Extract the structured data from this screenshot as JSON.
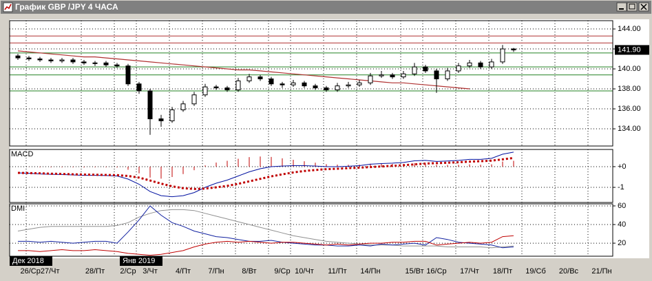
{
  "window_title": "График GBP /JPY  4 ЧАСА",
  "chart_data": [
    {
      "type": "candlestick",
      "categories": [
        null,
        null,
        "26/Ср27/Чт",
        null,
        null,
        null,
        null,
        "28/Пт",
        null,
        null,
        "2/Ср",
        null,
        "3/Чт",
        null,
        null,
        "4/Пт",
        null,
        null,
        "7/Пн",
        null,
        null,
        "8/Вт",
        null,
        null,
        "9/Ср",
        null,
        "10/Чт",
        null,
        null,
        "11/Пт",
        null,
        null,
        "14/Пн",
        null,
        null,
        null,
        "15/Вт",
        null,
        "16/Ср",
        null,
        null,
        "17/Чт",
        null,
        null,
        "18/Пт",
        null,
        null,
        "19/Сб",
        null,
        null,
        "20/Вс",
        null,
        null,
        "21/Пн"
      ],
      "month_labels": [
        "Дек 2018",
        null,
        null,
        null,
        null,
        null,
        null,
        null,
        null,
        null,
        "Янв 2019",
        null,
        null,
        null,
        null,
        null,
        null,
        null,
        null,
        null,
        null,
        null,
        null,
        null,
        null,
        null,
        null,
        null,
        null,
        null,
        null,
        null,
        null,
        null,
        null,
        null,
        null,
        null,
        null,
        null,
        null,
        null,
        null,
        null,
        null,
        null,
        null,
        null,
        null,
        null,
        null,
        null,
        null,
        null
      ],
      "open": [
        141.3,
        141.1,
        141.0,
        140.9,
        140.8,
        140.9,
        140.7,
        140.6,
        140.6,
        140.4,
        140.3,
        138.5,
        137.8,
        135.0,
        134.8,
        135.9,
        136.5,
        137.4,
        138.2,
        138.1,
        137.9,
        138.8,
        139.2,
        139.0,
        138.5,
        138.4,
        138.6,
        138.3,
        138.1,
        137.9,
        138.3,
        138.4,
        138.6,
        139.3,
        139.4,
        139.2,
        139.5,
        140.2,
        139.8,
        139.0,
        139.8,
        140.3,
        140.6,
        140.2,
        140.7,
        142.0,
        null,
        null,
        null,
        null,
        null,
        null,
        null,
        null
      ],
      "high": [
        141.5,
        141.3,
        141.2,
        141.1,
        141.1,
        141.1,
        140.9,
        140.8,
        140.8,
        140.6,
        140.5,
        138.7,
        138.0,
        135.4,
        136.2,
        136.8,
        137.7,
        138.5,
        138.4,
        138.3,
        139.1,
        139.5,
        139.4,
        139.2,
        138.7,
        138.9,
        138.8,
        138.5,
        138.3,
        138.6,
        138.7,
        138.9,
        139.6,
        139.8,
        139.6,
        139.8,
        140.6,
        140.4,
        140.0,
        140.1,
        140.6,
        140.9,
        140.8,
        141.0,
        142.4,
        142.1,
        null,
        null,
        null,
        null,
        null,
        null,
        null,
        null
      ],
      "low": [
        140.9,
        140.8,
        140.7,
        140.6,
        140.6,
        140.5,
        140.4,
        140.3,
        140.2,
        140.1,
        138.3,
        137.5,
        133.4,
        134.2,
        134.6,
        135.7,
        136.3,
        137.2,
        137.9,
        137.7,
        137.7,
        138.6,
        138.8,
        138.3,
        138.1,
        138.2,
        138.1,
        137.9,
        137.7,
        137.7,
        138.1,
        138.2,
        138.4,
        139.1,
        139.0,
        139.0,
        139.3,
        139.6,
        137.6,
        138.8,
        139.6,
        140.1,
        140.0,
        140.0,
        140.5,
        141.7,
        null,
        null,
        null,
        null,
        null,
        null,
        null,
        null
      ],
      "close": [
        141.1,
        141.0,
        140.9,
        140.8,
        140.9,
        140.7,
        140.6,
        140.6,
        140.4,
        140.3,
        138.5,
        137.8,
        135.0,
        134.8,
        135.9,
        136.5,
        137.4,
        138.2,
        138.1,
        137.9,
        138.8,
        139.2,
        139.0,
        138.5,
        138.4,
        138.6,
        138.3,
        138.1,
        137.9,
        138.3,
        138.4,
        138.6,
        139.3,
        139.4,
        139.2,
        139.5,
        140.2,
        139.8,
        139.0,
        139.8,
        140.3,
        140.6,
        140.2,
        140.7,
        142.0,
        141.9,
        null,
        null,
        null,
        null,
        null,
        null,
        null,
        null
      ],
      "up_color": "#ffffff",
      "down_color": "#000000",
      "ylim": [
        132.28,
        144.83
      ],
      "yticks": [
        {
          "value": 134,
          "label": "134.00"
        },
        {
          "value": 136,
          "label": "136.00"
        },
        {
          "value": 138,
          "label": "138.00"
        },
        {
          "value": 140,
          "label": "140.00"
        },
        {
          "value": 142,
          "label": "142.00"
        },
        {
          "value": 144,
          "label": "144.00"
        }
      ],
      "grid": true,
      "last_price": {
        "value": 141.9,
        "label": "141.90"
      },
      "levels": [
        {
          "value": 143.3,
          "color": "#b03030"
        },
        {
          "value": 142.6,
          "color": "#b03030"
        },
        {
          "value": 141.6,
          "color": "#208020"
        },
        {
          "value": 140.2,
          "color": "#208020"
        },
        {
          "value": 139.4,
          "color": "#208020"
        },
        {
          "value": 137.8,
          "color": "#208020"
        }
      ],
      "trendline": {
        "color": "#b03030",
        "values": [
          141.8,
          141.7,
          141.6,
          141.5,
          141.4,
          141.3,
          141.2,
          141.2,
          141.1,
          141.0,
          140.9,
          140.8,
          140.7,
          140.6,
          140.5,
          140.4,
          140.3,
          140.2,
          140.1,
          140.0,
          139.9,
          139.9,
          139.8,
          139.7,
          139.6,
          139.5,
          139.4,
          139.3,
          139.2,
          139.1,
          139.0,
          138.9,
          138.8,
          138.7,
          138.6,
          138.6,
          138.5,
          138.4,
          138.3,
          138.2,
          138.1,
          138.0,
          null,
          null,
          null,
          null,
          null,
          null,
          null,
          null,
          null,
          null,
          null,
          null
        ]
      }
    },
    {
      "type": "macd",
      "title": "MACD",
      "ylim": [
        -1.73,
        0.83
      ],
      "yticks": [
        -1,
        {
          "value": 0,
          "label": "+0"
        }
      ],
      "grid": true,
      "series": [
        {
          "style": "bar",
          "color": "#c00000",
          "values": [
            0,
            -0.01,
            -0.03,
            -0.03,
            -0.03,
            -0.03,
            -0.04,
            -0.03,
            -0.03,
            -0.04,
            -0.15,
            -0.32,
            -0.53,
            -0.58,
            -0.5,
            -0.36,
            -0.17,
            0.06,
            0.2,
            0.28,
            0.38,
            0.46,
            0.49,
            0.47,
            0.4,
            0.33,
            0.26,
            0.19,
            0.12,
            0.1,
            0.09,
            0.1,
            0.14,
            0.14,
            0.13,
            0.13,
            0.17,
            0.15,
            0.08,
            0.08,
            0.09,
            0.11,
            0.09,
            0.11,
            0.25,
            0.28,
            null,
            null,
            null,
            null,
            null,
            null,
            null,
            null
          ]
        },
        {
          "style": "line",
          "color": "#0010a0",
          "values": [
            -0.3,
            -0.32,
            -0.35,
            -0.37,
            -0.38,
            -0.4,
            -0.42,
            -0.42,
            -0.43,
            -0.45,
            -0.6,
            -0.85,
            -1.2,
            -1.4,
            -1.45,
            -1.4,
            -1.25,
            -1.0,
            -0.8,
            -0.65,
            -0.45,
            -0.25,
            -0.1,
            0.0,
            0.03,
            0.05,
            0.05,
            0.03,
            0.0,
            0.0,
            0.02,
            0.05,
            0.12,
            0.15,
            0.17,
            0.2,
            0.28,
            0.3,
            0.25,
            0.27,
            0.3,
            0.35,
            0.35,
            0.4,
            0.6,
            0.7,
            null,
            null,
            null,
            null,
            null,
            null,
            null,
            null
          ]
        },
        {
          "style": "dotted",
          "color": "#c00000",
          "values": [
            -0.3,
            -0.31,
            -0.32,
            -0.34,
            -0.35,
            -0.37,
            -0.38,
            -0.39,
            -0.4,
            -0.41,
            -0.45,
            -0.53,
            -0.67,
            -0.82,
            -0.95,
            -1.04,
            -1.08,
            -1.06,
            -1.0,
            -0.93,
            -0.83,
            -0.71,
            -0.59,
            -0.47,
            -0.37,
            -0.28,
            -0.21,
            -0.16,
            -0.12,
            -0.1,
            -0.07,
            -0.05,
            -0.02,
            0.01,
            0.04,
            0.07,
            0.11,
            0.15,
            0.17,
            0.19,
            0.21,
            0.24,
            0.26,
            0.29,
            0.35,
            0.42,
            null,
            null,
            null,
            null,
            null,
            null,
            null,
            null
          ]
        }
      ]
    },
    {
      "type": "dmi",
      "title": "DMI",
      "ylim": [
        6,
        62.2
      ],
      "yticks": [
        20,
        40,
        60
      ],
      "grid": true,
      "series": [
        {
          "style": "line",
          "color": "#909090",
          "values": [
            33,
            35,
            37,
            38,
            38,
            38,
            38,
            38,
            38,
            39,
            42,
            48,
            52,
            55,
            56,
            56,
            55,
            52,
            49,
            46,
            43,
            40,
            37,
            34,
            31,
            28,
            26,
            24,
            22,
            21,
            20,
            19,
            18,
            18,
            18,
            17,
            17,
            17,
            17,
            16,
            16,
            16,
            16,
            15,
            16,
            17,
            null,
            null,
            null,
            null,
            null,
            null,
            null,
            null
          ]
        },
        {
          "style": "line",
          "color": "#1020a0",
          "values": [
            22,
            22,
            21,
            22,
            21,
            20,
            21,
            22,
            22,
            20,
            32,
            45,
            60,
            50,
            42,
            38,
            33,
            30,
            27,
            26,
            24,
            22,
            22,
            23,
            21,
            20,
            19,
            18,
            18,
            17,
            17,
            18,
            17,
            19,
            18,
            19,
            20,
            18,
            26,
            24,
            21,
            20,
            19,
            18,
            15,
            16,
            null,
            null,
            null,
            null,
            null,
            null,
            null,
            null
          ]
        },
        {
          "style": "line",
          "color": "#c00000",
          "values": [
            12,
            12,
            11,
            12,
            13,
            12,
            12,
            13,
            12,
            11,
            9,
            8,
            7,
            8,
            10,
            12,
            16,
            19,
            21,
            22,
            21,
            22,
            21,
            20,
            21,
            21,
            20,
            19,
            18,
            19,
            18,
            19,
            20,
            20,
            21,
            21,
            22,
            22,
            18,
            19,
            20,
            21,
            20,
            21,
            27,
            28,
            null,
            null,
            null,
            null,
            null,
            null,
            null,
            null
          ]
        }
      ]
    }
  ]
}
